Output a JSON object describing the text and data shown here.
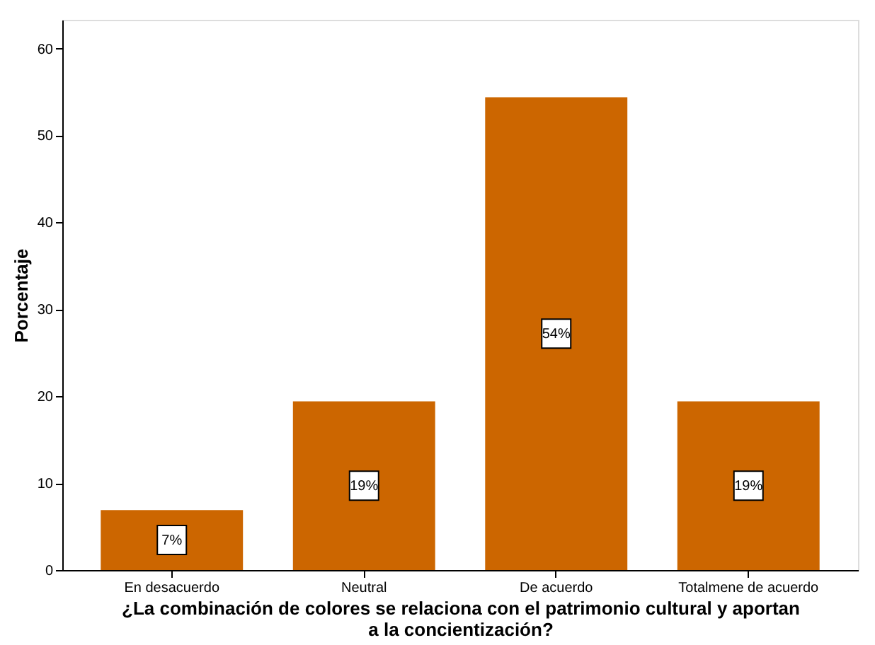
{
  "chart_data": {
    "type": "bar",
    "categories": [
      "En desacuerdo",
      "Neutral",
      "De acuerdo",
      "Totalmene de acuerdo"
    ],
    "values": [
      6.9,
      19.4,
      54.4,
      19.4
    ],
    "value_labels": [
      "7%",
      "19%",
      "54%",
      "19%"
    ],
    "color": "#cc6600",
    "ylim": [
      0,
      63.3
    ],
    "yticks": [
      0,
      10,
      20,
      30,
      40,
      50,
      60
    ],
    "ylabel": "Porcentaje",
    "xlabel": "¿La combinación de colores se relaciona con el patrimonio cultural y aportan\na la concientización?",
    "grid": false
  }
}
